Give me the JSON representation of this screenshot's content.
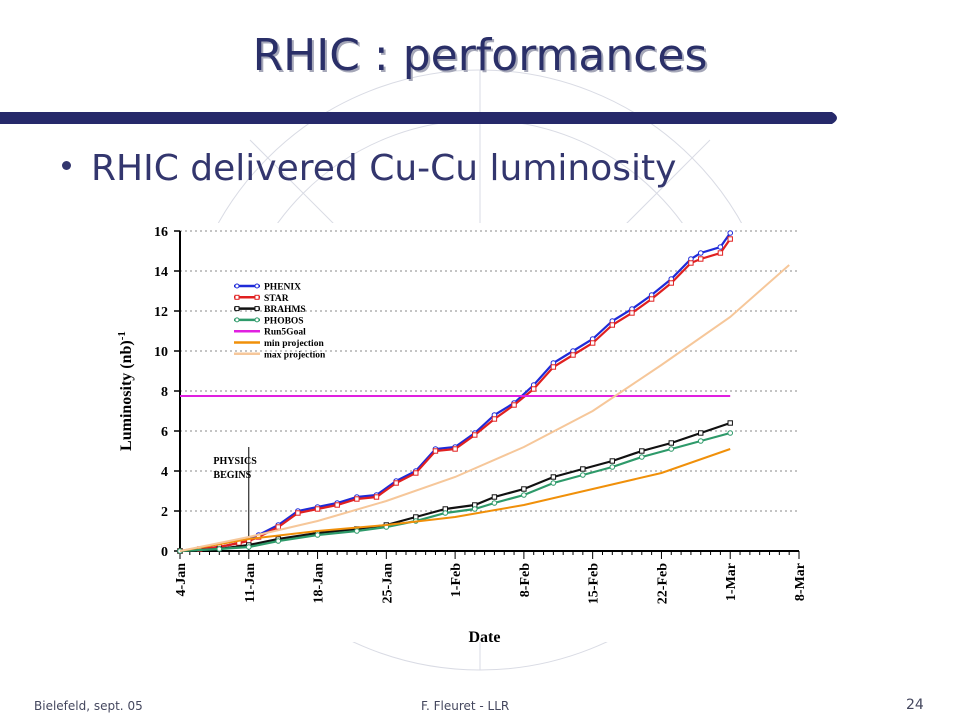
{
  "slide": {
    "title": "RHIC : performances",
    "bullet": "RHIC delivered Cu-Cu luminosity",
    "footer_left": "Bielefeld, sept. 05",
    "footer_center": "F. Fleuret - LLR",
    "page_number": "24"
  },
  "colors": {
    "title_text": "#2a2f68",
    "title_bar": "#26296a",
    "bullet_text": "#33366e"
  },
  "chart_data": {
    "type": "line",
    "xlabel": "Date",
    "ylabel": "Luminosity (nb)",
    "ylabel_superscript": "-1",
    "x_unit": "day since 4-Jan",
    "xlim": [
      0,
      63
    ],
    "ylim": [
      0,
      16
    ],
    "y_ticks": [
      0,
      2,
      4,
      6,
      8,
      10,
      12,
      14,
      16
    ],
    "x_tick_labels": [
      "4-Jan",
      "11-Jan",
      "18-Jan",
      "25-Jan",
      "1-Feb",
      "8-Feb",
      "15-Feb",
      "22-Feb",
      "1-Mar",
      "8-Mar"
    ],
    "annotation": {
      "text_line1": "PHYSICS",
      "text_line2": "BEGINS",
      "x": 7
    },
    "grid": true,
    "legend_position": "top-left",
    "series": [
      {
        "name": "PHENIX",
        "color": "#1f2bd8",
        "marker": "circle",
        "points": [
          [
            0,
            0
          ],
          [
            2,
            0.1
          ],
          [
            4,
            0.2
          ],
          [
            6,
            0.4
          ],
          [
            7,
            0.6
          ],
          [
            8,
            0.8
          ],
          [
            10,
            1.3
          ],
          [
            12,
            2.0
          ],
          [
            14,
            2.2
          ],
          [
            16,
            2.4
          ],
          [
            18,
            2.7
          ],
          [
            20,
            2.8
          ],
          [
            22,
            3.5
          ],
          [
            24,
            4.0
          ],
          [
            26,
            5.1
          ],
          [
            28,
            5.2
          ],
          [
            30,
            5.9
          ],
          [
            32,
            6.8
          ],
          [
            34,
            7.4
          ],
          [
            36,
            8.3
          ],
          [
            38,
            9.4
          ],
          [
            40,
            10.0
          ],
          [
            42,
            10.6
          ],
          [
            44,
            11.5
          ],
          [
            46,
            12.1
          ],
          [
            48,
            12.8
          ],
          [
            50,
            13.6
          ],
          [
            52,
            14.6
          ],
          [
            53,
            14.9
          ],
          [
            55,
            15.2
          ],
          [
            56,
            15.9
          ]
        ]
      },
      {
        "name": "STAR",
        "color": "#e02020",
        "marker": "square",
        "points": [
          [
            0,
            0
          ],
          [
            2,
            0.1
          ],
          [
            4,
            0.2
          ],
          [
            6,
            0.4
          ],
          [
            7,
            0.5
          ],
          [
            8,
            0.7
          ],
          [
            10,
            1.2
          ],
          [
            12,
            1.9
          ],
          [
            14,
            2.1
          ],
          [
            16,
            2.3
          ],
          [
            18,
            2.6
          ],
          [
            20,
            2.7
          ],
          [
            22,
            3.4
          ],
          [
            24,
            3.9
          ],
          [
            26,
            5.0
          ],
          [
            28,
            5.1
          ],
          [
            30,
            5.8
          ],
          [
            32,
            6.6
          ],
          [
            34,
            7.3
          ],
          [
            36,
            8.1
          ],
          [
            38,
            9.2
          ],
          [
            40,
            9.8
          ],
          [
            42,
            10.4
          ],
          [
            44,
            11.3
          ],
          [
            46,
            11.9
          ],
          [
            48,
            12.6
          ],
          [
            50,
            13.4
          ],
          [
            52,
            14.4
          ],
          [
            53,
            14.6
          ],
          [
            55,
            14.9
          ],
          [
            56,
            15.6
          ]
        ]
      },
      {
        "name": "BRAHMS",
        "color": "#111111",
        "marker": "square",
        "points": [
          [
            0,
            0
          ],
          [
            4,
            0.1
          ],
          [
            7,
            0.3
          ],
          [
            10,
            0.6
          ],
          [
            14,
            0.9
          ],
          [
            18,
            1.1
          ],
          [
            21,
            1.3
          ],
          [
            24,
            1.7
          ],
          [
            27,
            2.1
          ],
          [
            30,
            2.3
          ],
          [
            32,
            2.7
          ],
          [
            35,
            3.1
          ],
          [
            38,
            3.7
          ],
          [
            41,
            4.1
          ],
          [
            44,
            4.5
          ],
          [
            47,
            5.0
          ],
          [
            50,
            5.4
          ],
          [
            53,
            5.9
          ],
          [
            56,
            6.4
          ]
        ]
      },
      {
        "name": "PHOBOS",
        "color": "#2e9a6a",
        "marker": "circle",
        "points": [
          [
            0,
            0
          ],
          [
            4,
            0.1
          ],
          [
            7,
            0.2
          ],
          [
            10,
            0.5
          ],
          [
            14,
            0.8
          ],
          [
            18,
            1.0
          ],
          [
            21,
            1.2
          ],
          [
            24,
            1.5
          ],
          [
            27,
            1.9
          ],
          [
            30,
            2.1
          ],
          [
            32,
            2.4
          ],
          [
            35,
            2.8
          ],
          [
            38,
            3.4
          ],
          [
            41,
            3.8
          ],
          [
            44,
            4.2
          ],
          [
            47,
            4.7
          ],
          [
            50,
            5.1
          ],
          [
            53,
            5.5
          ],
          [
            56,
            5.9
          ]
        ]
      },
      {
        "name": "Run5Goal",
        "color": "#e020e0",
        "marker": "none",
        "points": [
          [
            0,
            7.75
          ],
          [
            56,
            7.75
          ]
        ]
      },
      {
        "name": "min projection",
        "color": "#f0900a",
        "marker": "none",
        "points": [
          [
            0,
            0
          ],
          [
            7,
            0.6
          ],
          [
            14,
            1.0
          ],
          [
            21,
            1.3
          ],
          [
            28,
            1.7
          ],
          [
            35,
            2.3
          ],
          [
            42,
            3.1
          ],
          [
            49,
            3.9
          ],
          [
            56,
            5.1
          ]
        ]
      },
      {
        "name": "max projection",
        "color": "#f6c79a",
        "marker": "none",
        "points": [
          [
            0,
            0
          ],
          [
            7,
            0.7
          ],
          [
            14,
            1.5
          ],
          [
            21,
            2.5
          ],
          [
            28,
            3.7
          ],
          [
            35,
            5.2
          ],
          [
            42,
            7.0
          ],
          [
            49,
            9.3
          ],
          [
            56,
            11.7
          ],
          [
            62,
            14.3
          ]
        ]
      }
    ]
  }
}
